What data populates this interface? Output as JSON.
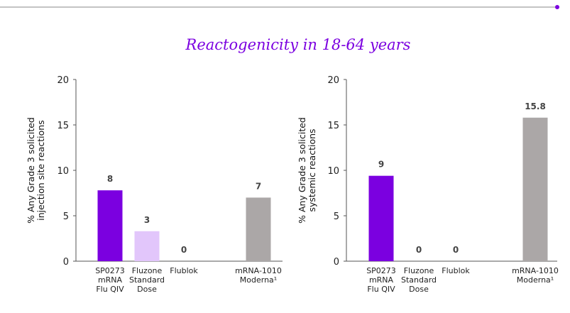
{
  "title": "Reactogenicity in 18-64 years",
  "chart_data": [
    {
      "type": "bar",
      "ylabel": [
        "% Any Grade 3 solicited",
        "injection site  reactions"
      ],
      "categories": [
        [
          "SP0273",
          "mRNA",
          "Flu QIV"
        ],
        [
          "Fluzone",
          "Standard",
          "Dose"
        ],
        [
          "Flublok"
        ],
        [
          "mRNA-1010",
          "Moderna¹"
        ]
      ],
      "values": [
        7.8,
        3.3,
        0,
        7.0
      ],
      "value_labels": [
        "8",
        "3",
        "0",
        "7"
      ],
      "colors": [
        "#7b00e0",
        "#e2c6fb",
        "#d9d9d9",
        "#aba7a7"
      ],
      "ylim": [
        0,
        20
      ],
      "yticks": [
        0,
        5,
        10,
        15,
        20
      ]
    },
    {
      "type": "bar",
      "ylabel": [
        "% Any Grade 3 solicited",
        "systemic reactions"
      ],
      "categories": [
        [
          "SP0273",
          "mRNA",
          "Flu QIV"
        ],
        [
          "Fluzone",
          "Standard",
          "Dose"
        ],
        [
          "Flublok"
        ],
        [
          "mRNA-1010",
          "Moderna¹"
        ]
      ],
      "values": [
        9.4,
        0,
        0,
        15.8
      ],
      "value_labels": [
        "9",
        "0",
        "0",
        "15.8"
      ],
      "colors": [
        "#7b00e0",
        "#e2c6fb",
        "#d9d9d9",
        "#aba7a7"
      ],
      "ylim": [
        0,
        20
      ],
      "yticks": [
        0,
        5,
        10,
        15,
        20
      ]
    }
  ]
}
